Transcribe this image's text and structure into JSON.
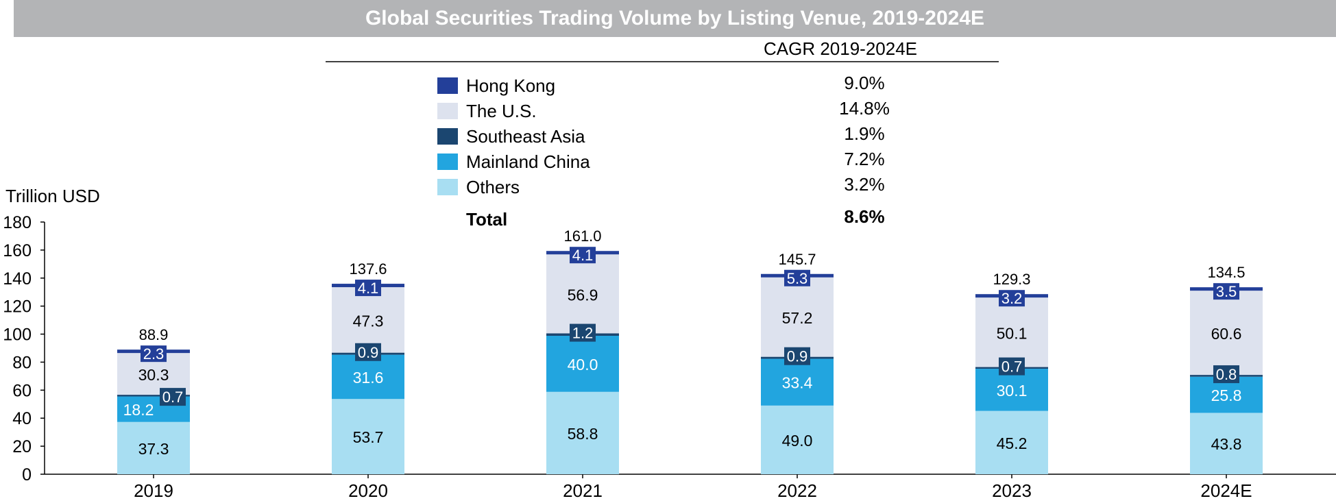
{
  "colors": {
    "title_bar": "#b3b4b6",
    "hong_kong": "#233f99",
    "us": "#dde2ee",
    "southeast_asia": "#1b4670",
    "mainland_china": "#22a5df",
    "others": "#a8def2"
  },
  "chart_data": {
    "type": "bar",
    "stacked": true,
    "title": "Global Securities Trading Volume by Listing Venue, 2019-2024E",
    "ylabel": "Trillion USD",
    "xlabel": "",
    "ylim": [
      0,
      180
    ],
    "yticks": [
      "0",
      "20",
      "40",
      "60",
      "80",
      "100",
      "120",
      "140",
      "160",
      "180"
    ],
    "categories": [
      "2019",
      "2020",
      "2021",
      "2022",
      "2023",
      "2024E"
    ],
    "series": [
      {
        "name": "Others",
        "color_key": "others",
        "values": [
          37.3,
          53.7,
          58.8,
          49.0,
          45.2,
          43.8
        ],
        "labels": [
          "37.3",
          "53.7",
          "58.8",
          "49.0",
          "45.2",
          "43.8"
        ]
      },
      {
        "name": "Mainland China",
        "color_key": "mainland_china",
        "values": [
          18.2,
          31.6,
          40.0,
          33.4,
          30.1,
          25.8
        ],
        "labels": [
          "18.2",
          "31.6",
          "40.0",
          "33.4",
          "30.1",
          "25.8"
        ]
      },
      {
        "name": "Southeast Asia",
        "color_key": "southeast_asia",
        "values": [
          0.7,
          0.9,
          1.2,
          0.9,
          0.7,
          0.8
        ],
        "labels": [
          "0.7",
          "0.9",
          "1.2",
          "0.9",
          "0.7",
          "0.8"
        ]
      },
      {
        "name": "The U.S.",
        "color_key": "us",
        "values": [
          30.3,
          47.3,
          56.9,
          57.2,
          50.1,
          60.6
        ],
        "labels": [
          "30.3",
          "47.3",
          "56.9",
          "57.2",
          "50.1",
          "60.6"
        ]
      },
      {
        "name": "Hong Kong",
        "color_key": "hong_kong",
        "values": [
          2.3,
          4.1,
          4.1,
          5.3,
          3.2,
          3.5
        ],
        "labels": [
          "2.3",
          "4.1",
          "4.1",
          "5.3",
          "3.2",
          "3.5"
        ]
      }
    ],
    "totals": [
      "88.9",
      "137.6",
      "161.0",
      "145.7",
      "129.3",
      "134.5"
    ],
    "legend": {
      "placement": "top-center",
      "cagr_header": "CAGR 2019-2024E",
      "entries": [
        {
          "name": "Hong Kong",
          "color_key": "hong_kong",
          "cagr": "9.0%"
        },
        {
          "name": "The U.S.",
          "color_key": "us",
          "cagr": "14.8%"
        },
        {
          "name": "Southeast Asia",
          "color_key": "southeast_asia",
          "cagr": "1.9%"
        },
        {
          "name": "Mainland China",
          "color_key": "mainland_china",
          "cagr": "7.2%"
        },
        {
          "name": "Others",
          "color_key": "others",
          "cagr": "3.2%"
        }
      ],
      "total_label": "Total",
      "total_cagr": "8.6%"
    },
    "grid": false
  }
}
